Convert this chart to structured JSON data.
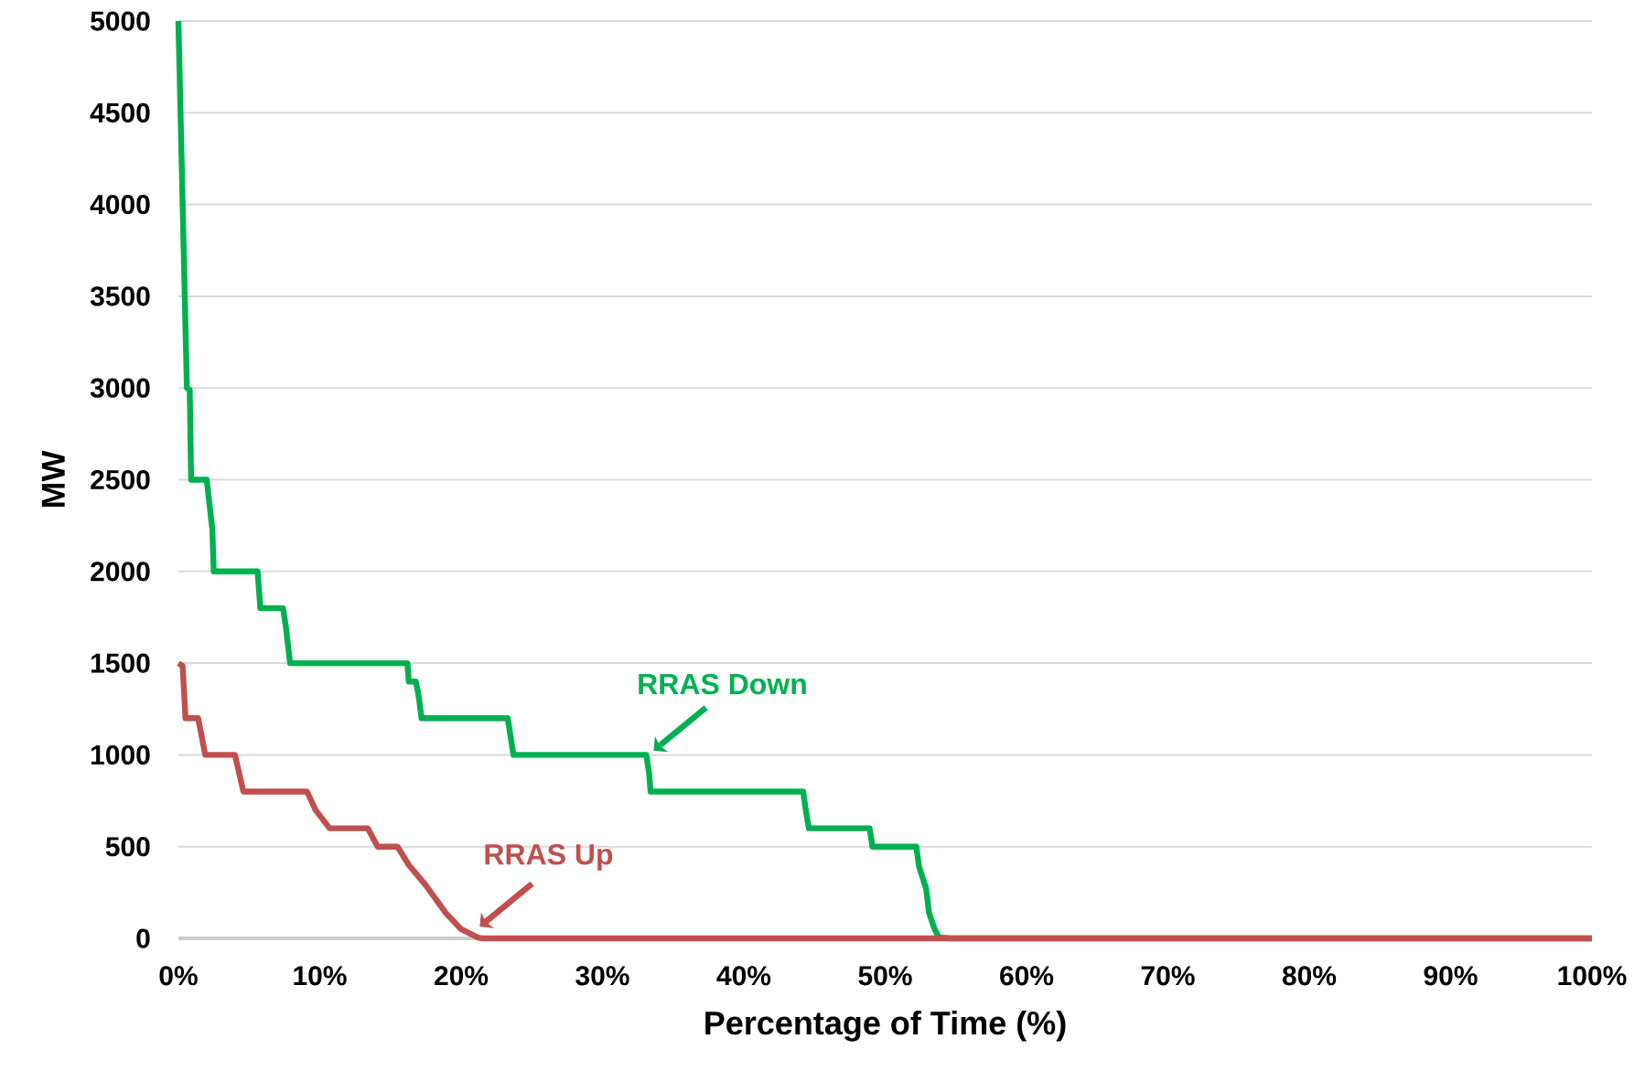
{
  "chart_data": {
    "type": "line",
    "xlabel": "Percentage of Time (%)",
    "ylabel": "MW",
    "xlim": [
      0,
      100
    ],
    "ylim": [
      0,
      5000
    ],
    "xticks": [
      {
        "value": 0,
        "label": "0%"
      },
      {
        "value": 10,
        "label": "10%"
      },
      {
        "value": 20,
        "label": "20%"
      },
      {
        "value": 30,
        "label": "30%"
      },
      {
        "value": 40,
        "label": "40%"
      },
      {
        "value": 50,
        "label": "50%"
      },
      {
        "value": 60,
        "label": "60%"
      },
      {
        "value": 70,
        "label": "70%"
      },
      {
        "value": 80,
        "label": "80%"
      },
      {
        "value": 90,
        "label": "90%"
      },
      {
        "value": 100,
        "label": "100%"
      }
    ],
    "yticks": [
      0,
      500,
      1000,
      1500,
      2000,
      2500,
      3000,
      3500,
      4000,
      4500,
      5000
    ],
    "grid": "y",
    "marker": "none",
    "line_style": "solid",
    "series": [
      {
        "color": "#00b050",
        "x": [
          0,
          0.6,
          0.8,
          0.9,
          2.0,
          2.4,
          2.5,
          5.6,
          5.8,
          7.4,
          7.6,
          7.9,
          16.2,
          16.3,
          16.8,
          17.0,
          17.2,
          23.3,
          23.7,
          33.1,
          33.3,
          33.4,
          44.2,
          44.4,
          44.6,
          48.9,
          49.1,
          52.2,
          52.4,
          52.9,
          53.1,
          53.5,
          53.8,
          54.6,
          100
        ],
        "values": [
          5000,
          3000,
          2990,
          2500,
          2500,
          2230,
          2000,
          2000,
          1800,
          1800,
          1700,
          1500,
          1500,
          1400,
          1400,
          1320,
          1200,
          1200,
          1000,
          1000,
          900,
          800,
          800,
          690,
          600,
          600,
          500,
          500,
          390,
          270,
          140,
          50,
          5,
          0,
          0
        ]
      },
      {
        "color": "#c0504d",
        "x": [
          0,
          0.3,
          0.5,
          1.4,
          1.9,
          4.0,
          4.6,
          9.1,
          9.7,
          10.7,
          13.4,
          14.1,
          15.5,
          16.3,
          17.5,
          18.9,
          20.0,
          21.2,
          21.5,
          100
        ],
        "values": [
          1500,
          1485,
          1200,
          1200,
          1000,
          1000,
          800,
          800,
          700,
          600,
          600,
          500,
          500,
          400,
          290,
          140,
          50,
          5,
          0,
          0
        ]
      }
    ],
    "annotations": [
      {
        "text": "RRAS Down",
        "x": 33.3,
        "y": 1000
      },
      {
        "text": "RRAS Up",
        "x": 21.0,
        "y": 40
      }
    ]
  }
}
